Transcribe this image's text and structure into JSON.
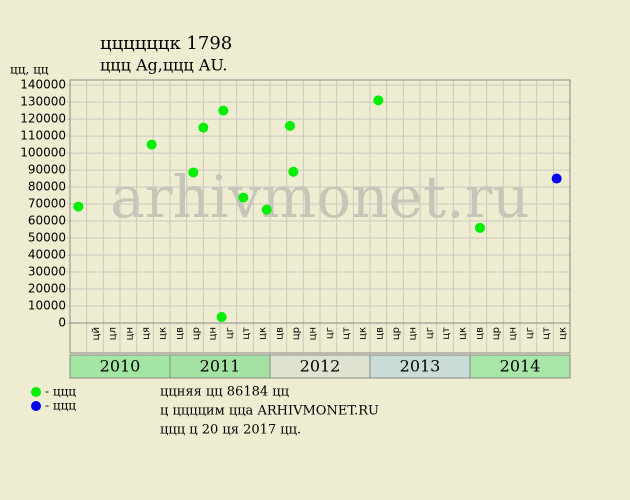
{
  "chart_data": {
    "type": "scatter",
    "title": "ццццццк 1798",
    "subtitle": "ццц Ag,ццц AU.",
    "y_label": "цц, цц",
    "watermark": "arhivmonet.ru",
    "categories": [
      null,
      "цй",
      "цл",
      "цн",
      "ця",
      "цк",
      "цв",
      "цр",
      "цн",
      "цг",
      "цт",
      "цк",
      "цв",
      "цр",
      "цн",
      "цг",
      "цт",
      "цк",
      "цв",
      "цр",
      "цн",
      "цг",
      "цт",
      "цк",
      "цв",
      "цр",
      "цн",
      "цг",
      "цт",
      "цк"
    ],
    "years": [
      {
        "label": "2010",
        "color": "#a3e6a3"
      },
      {
        "label": "2011",
        "color": "#a3e2a3"
      },
      {
        "label": "2012",
        "color": "#dde3cf"
      },
      {
        "label": "2013",
        "color": "#c9ddd6"
      },
      {
        "label": "2014",
        "color": "#a8e6a8"
      }
    ],
    "xlim": [
      0,
      30
    ],
    "ylim": [
      0,
      143000
    ],
    "yticks": [
      0,
      10000,
      20000,
      30000,
      40000,
      50000,
      60000,
      70000,
      80000,
      90000,
      100000,
      110000,
      120000,
      130000,
      140000
    ],
    "grid": true,
    "series": [
      {
        "name": "- ццц",
        "color": "#00ee00",
        "x": [
          0.5,
          4.9,
          7.4,
          8.0,
          9.1,
          9.2,
          10.4,
          11.8,
          13.2,
          13.4,
          18.5,
          24.6
        ],
        "values": [
          68500,
          105000,
          88600,
          115000,
          3500,
          125000,
          73800,
          66700,
          116000,
          89000,
          131000,
          56000
        ]
      },
      {
        "name": "- ццц",
        "color": "#0000ee",
        "x": [
          29.2
        ],
        "values": [
          85000
        ]
      }
    ],
    "notes": [
      "ццняя цц 86184 цц",
      "ц ццццим цца ARHIVMONET.RU",
      "ццц ц 20 ця 2017 цц."
    ]
  }
}
